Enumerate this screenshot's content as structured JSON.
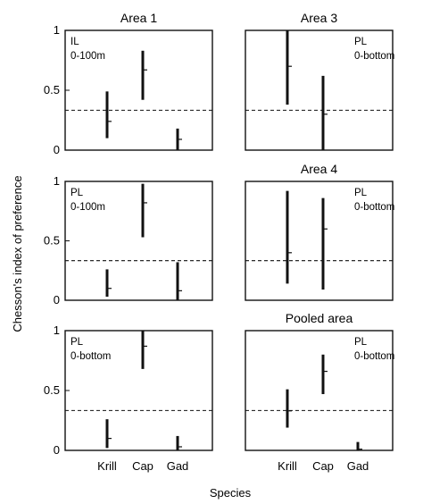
{
  "figure": {
    "ylabel": "Chesson's index of preference",
    "xlabel": "Species",
    "categories": [
      "Krill",
      "Cap",
      "Gad"
    ],
    "yticks": [
      "0",
      "0.5",
      "1"
    ],
    "reference_line": 0.333
  },
  "chart_data": [
    {
      "type": "error-interval",
      "title": "Area 1",
      "annotation": [
        "IL",
        "0-100m"
      ],
      "categories": [
        "Krill",
        "Cap",
        "Gad"
      ],
      "ylim": [
        0,
        1
      ],
      "reference_line": 0.333,
      "intervals": [
        {
          "category": "Krill",
          "low": 0.1,
          "high": 0.49,
          "mean": 0.24
        },
        {
          "category": "Cap",
          "low": 0.42,
          "high": 0.83,
          "mean": 0.67
        },
        {
          "category": "Gad",
          "low": 0.0,
          "high": 0.18,
          "mean": 0.09
        }
      ]
    },
    {
      "type": "error-interval",
      "title": "Area 3",
      "annotation": [
        "PL",
        "0-bottom"
      ],
      "categories": [
        "Krill",
        "Cap",
        "Gad"
      ],
      "ylim": [
        0,
        1
      ],
      "reference_line": 0.333,
      "intervals": [
        {
          "category": "Krill",
          "low": 0.38,
          "high": 1.0,
          "mean": 0.7
        },
        {
          "category": "Cap",
          "low": 0.0,
          "high": 0.62,
          "mean": 0.3
        }
      ]
    },
    {
      "type": "error-interval",
      "title": "",
      "annotation": [
        "PL",
        "0-100m"
      ],
      "categories": [
        "Krill",
        "Cap",
        "Gad"
      ],
      "ylim": [
        0,
        1
      ],
      "reference_line": 0.333,
      "intervals": [
        {
          "category": "Krill",
          "low": 0.03,
          "high": 0.26,
          "mean": 0.1
        },
        {
          "category": "Cap",
          "low": 0.53,
          "high": 0.98,
          "mean": 0.82
        },
        {
          "category": "Gad",
          "low": 0.0,
          "high": 0.32,
          "mean": 0.08
        }
      ]
    },
    {
      "type": "error-interval",
      "title": "Area 4",
      "annotation": [
        "PL",
        "0-bottom"
      ],
      "categories": [
        "Krill",
        "Cap",
        "Gad"
      ],
      "ylim": [
        0,
        1
      ],
      "reference_line": 0.333,
      "intervals": [
        {
          "category": "Krill",
          "low": 0.14,
          "high": 0.92,
          "mean": 0.4
        },
        {
          "category": "Cap",
          "low": 0.09,
          "high": 0.86,
          "mean": 0.6
        }
      ]
    },
    {
      "type": "error-interval",
      "title": "",
      "annotation": [
        "PL",
        "0-bottom"
      ],
      "categories": [
        "Krill",
        "Cap",
        "Gad"
      ],
      "ylim": [
        0,
        1
      ],
      "reference_line": 0.333,
      "intervals": [
        {
          "category": "Krill",
          "low": 0.02,
          "high": 0.26,
          "mean": 0.1
        },
        {
          "category": "Cap",
          "low": 0.68,
          "high": 1.0,
          "mean": 0.87
        },
        {
          "category": "Gad",
          "low": 0.0,
          "high": 0.12,
          "mean": 0.03
        }
      ]
    },
    {
      "type": "error-interval",
      "title": "Pooled area",
      "annotation": [
        "PL",
        "0-bottom"
      ],
      "categories": [
        "Krill",
        "Cap",
        "Gad"
      ],
      "ylim": [
        0,
        1
      ],
      "reference_line": 0.333,
      "intervals": [
        {
          "category": "Krill",
          "low": 0.19,
          "high": 0.51,
          "mean": 0.33
        },
        {
          "category": "Cap",
          "low": 0.47,
          "high": 0.8,
          "mean": 0.66
        },
        {
          "category": "Gad",
          "low": 0.0,
          "high": 0.07,
          "mean": 0.01
        }
      ]
    }
  ]
}
